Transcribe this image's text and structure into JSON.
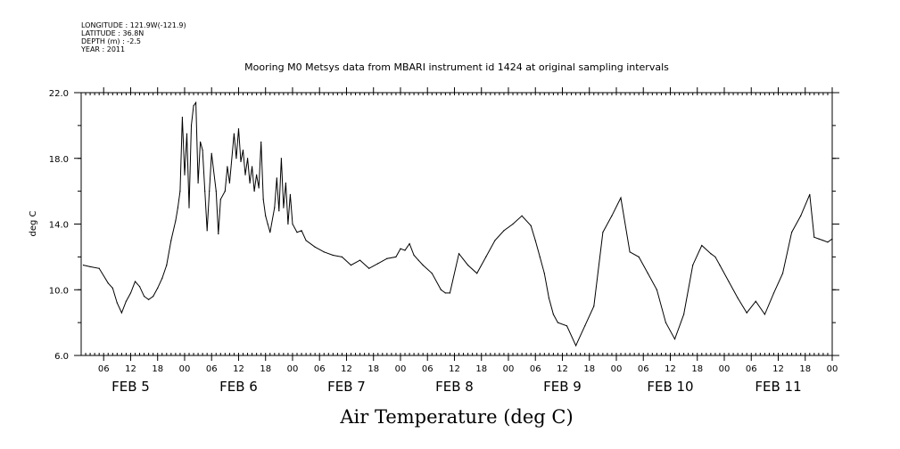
{
  "metadata": {
    "longitude": "LONGITUDE : 121.9W(-121.9)",
    "latitude": "LATITUDE : 36.8N",
    "depth": "DEPTH (m) : -2.5",
    "year": "YEAR : 2011"
  },
  "chart_data": {
    "type": "line",
    "title": "Mooring M0 Metsys data from MBARI instrument id 1424 at original sampling intervals",
    "xlabel": "Air Temperature (deg C)",
    "ylabel": "deg C",
    "ylim": [
      6.0,
      22.0
    ],
    "yticks": [
      "6.0",
      "10.0",
      "14.0",
      "18.0",
      "22.0"
    ],
    "xlim_hours": [
      0,
      167
    ],
    "hour_tick_labels": [
      "06",
      "12",
      "18",
      "00",
      "06",
      "12",
      "18",
      "00",
      "06",
      "12",
      "18",
      "00",
      "06",
      "12",
      "18",
      "00",
      "06",
      "12",
      "18",
      "00",
      "06",
      "12",
      "18",
      "00",
      "06",
      "12",
      "18",
      "00"
    ],
    "date_labels": [
      "FEB 5",
      "FEB 6",
      "FEB 7",
      "FEB 8",
      "FEB 9",
      "FEB 10",
      "FEB 11"
    ],
    "grid": false,
    "series": [
      {
        "x": [
          0.5,
          2,
          4,
          6,
          7,
          8,
          9,
          10,
          11,
          12,
          13,
          14,
          15,
          16,
          17,
          18,
          19,
          20,
          21,
          21.5,
          22,
          22.5,
          23,
          23.5,
          24,
          24.5,
          25,
          25.5,
          26,
          26.5,
          27,
          27.5,
          28,
          28.5,
          29,
          30,
          30.5,
          31,
          32,
          32.5,
          33,
          34,
          34.5,
          35,
          35.5,
          36,
          36.5,
          37,
          37.5,
          38,
          38.5,
          39,
          39.5,
          40,
          40.5,
          41,
          41.5,
          42,
          43,
          43.5,
          44,
          44.5,
          45,
          45.5,
          46,
          46.5,
          47,
          48,
          49,
          50,
          52,
          54,
          56,
          58,
          60,
          62,
          64,
          66,
          68,
          70,
          71,
          72,
          73,
          74,
          75,
          76,
          78,
          80,
          81,
          82,
          84,
          86,
          88,
          90,
          92,
          94,
          96,
          98,
          100,
          101,
          102,
          103,
          104,
          105,
          106,
          108,
          110,
          112,
          114,
          116,
          118,
          120,
          122,
          124,
          126,
          128,
          130,
          132,
          134,
          136,
          138,
          140,
          141,
          142,
          144,
          146,
          148,
          150,
          152,
          154,
          156,
          158,
          160,
          162,
          163,
          164,
          165,
          166,
          167
        ],
        "y": [
          11.5,
          11.4,
          11.3,
          10.4,
          10.1,
          9.2,
          8.6,
          9.3,
          9.8,
          10.5,
          10.2,
          9.6,
          9.4,
          9.6,
          10.1,
          10.7,
          11.5,
          13.0,
          14.2,
          15.0,
          16.0,
          20.5,
          17.0,
          19.5,
          15.0,
          20.0,
          21.2,
          21.4,
          16.5,
          19.0,
          18.5,
          16.0,
          13.6,
          16.0,
          18.3,
          16.0,
          13.4,
          15.5,
          16.0,
          17.5,
          16.5,
          19.5,
          18.0,
          19.8,
          17.8,
          18.5,
          17.0,
          18.0,
          16.5,
          17.5,
          16.0,
          17.0,
          16.2,
          19.0,
          15.5,
          14.5,
          14.0,
          13.5,
          15.0,
          16.8,
          14.8,
          18.0,
          15.0,
          16.5,
          14.0,
          15.8,
          14.0,
          13.5,
          13.6,
          13.0,
          12.6,
          12.3,
          12.1,
          12.0,
          11.5,
          11.8,
          11.3,
          11.6,
          11.9,
          12.0,
          12.5,
          12.4,
          12.8,
          12.1,
          11.8,
          11.5,
          11.0,
          10.0,
          9.8,
          9.8,
          12.2,
          11.5,
          11.0,
          12.0,
          13.0,
          13.6,
          14.0,
          14.5,
          13.9,
          13.0,
          12.0,
          11.0,
          9.5,
          8.5,
          8.0,
          7.8,
          6.6,
          7.8,
          9.0,
          13.5,
          14.5,
          15.6,
          12.3,
          12.0,
          11.0,
          10.0,
          8.0,
          7.0,
          8.5,
          11.5,
          12.7,
          12.2,
          12.0,
          11.5,
          10.5,
          9.5,
          8.6,
          9.3,
          8.5,
          9.8,
          11.0,
          13.5,
          14.5,
          15.8,
          13.2,
          13.1,
          13.0,
          12.9,
          13.1
        ]
      }
    ]
  }
}
